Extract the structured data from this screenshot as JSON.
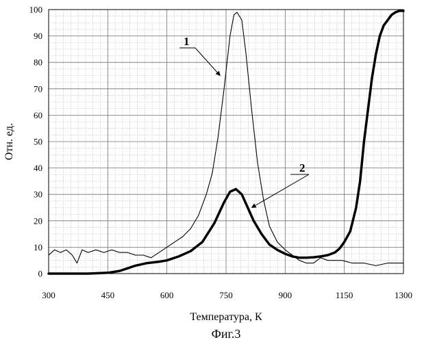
{
  "chart_data": {
    "type": "line",
    "title": "",
    "caption": "Фиг.3",
    "xlabel": "Температура, К",
    "ylabel": "Отн. ед.",
    "x_ticks": [
      "300",
      "450",
      "600",
      "750",
      "900",
      "1150",
      "1300"
    ],
    "y_ticks": [
      "0",
      "10",
      "20",
      "30",
      "40",
      "50",
      "60",
      "70",
      "80",
      "90",
      "100"
    ],
    "ylim": [
      0,
      100
    ],
    "grid": true,
    "legend": "none",
    "series": [
      {
        "name": "1",
        "style": "thin",
        "color": "#000000",
        "points": [
          [
            300,
            7
          ],
          [
            315,
            9
          ],
          [
            330,
            8
          ],
          [
            345,
            9
          ],
          [
            360,
            7
          ],
          [
            372,
            4
          ],
          [
            385,
            9
          ],
          [
            400,
            8
          ],
          [
            420,
            9
          ],
          [
            440,
            8
          ],
          [
            460,
            9
          ],
          [
            480,
            8
          ],
          [
            500,
            8
          ],
          [
            520,
            7
          ],
          [
            540,
            7
          ],
          [
            560,
            6
          ],
          [
            580,
            8
          ],
          [
            600,
            10
          ],
          [
            620,
            12
          ],
          [
            640,
            14
          ],
          [
            660,
            17
          ],
          [
            680,
            22
          ],
          [
            700,
            30
          ],
          [
            715,
            38
          ],
          [
            730,
            52
          ],
          [
            745,
            70
          ],
          [
            760,
            90
          ],
          [
            770,
            98
          ],
          [
            778,
            99
          ],
          [
            790,
            96
          ],
          [
            800,
            84
          ],
          [
            815,
            62
          ],
          [
            830,
            42
          ],
          [
            845,
            28
          ],
          [
            860,
            18
          ],
          [
            880,
            12
          ],
          [
            900,
            9
          ],
          [
            930,
            7
          ],
          [
            960,
            5
          ],
          [
            990,
            4
          ],
          [
            1020,
            4
          ],
          [
            1050,
            6
          ],
          [
            1080,
            5
          ],
          [
            1110,
            5
          ],
          [
            1140,
            5
          ],
          [
            1170,
            4
          ],
          [
            1200,
            4
          ],
          [
            1230,
            3
          ],
          [
            1260,
            4
          ],
          [
            1280,
            4
          ],
          [
            1300,
            4
          ]
        ]
      },
      {
        "name": "2",
        "style": "thick",
        "color": "#000000",
        "points": [
          [
            300,
            0
          ],
          [
            400,
            0
          ],
          [
            450,
            0.3
          ],
          [
            480,
            1
          ],
          [
            500,
            2
          ],
          [
            520,
            3
          ],
          [
            550,
            4
          ],
          [
            580,
            4.5
          ],
          [
            600,
            5
          ],
          [
            630,
            6.5
          ],
          [
            660,
            8.5
          ],
          [
            690,
            12
          ],
          [
            720,
            19
          ],
          [
            745,
            27
          ],
          [
            760,
            31
          ],
          [
            775,
            32
          ],
          [
            790,
            30
          ],
          [
            805,
            25
          ],
          [
            820,
            20
          ],
          [
            840,
            15
          ],
          [
            860,
            11
          ],
          [
            880,
            9
          ],
          [
            900,
            7.5
          ],
          [
            930,
            6.5
          ],
          [
            960,
            6
          ],
          [
            990,
            6
          ],
          [
            1020,
            6.2
          ],
          [
            1050,
            6.5
          ],
          [
            1080,
            7
          ],
          [
            1110,
            8
          ],
          [
            1130,
            9.5
          ],
          [
            1150,
            12
          ],
          [
            1165,
            16
          ],
          [
            1180,
            25
          ],
          [
            1190,
            35
          ],
          [
            1200,
            50
          ],
          [
            1210,
            62
          ],
          [
            1220,
            74
          ],
          [
            1230,
            83
          ],
          [
            1240,
            90
          ],
          [
            1250,
            94
          ],
          [
            1260,
            96
          ],
          [
            1270,
            98
          ],
          [
            1280,
            99
          ],
          [
            1290,
            99.5
          ],
          [
            1300,
            99.5
          ]
        ]
      }
    ],
    "annotations": [
      {
        "text": "1",
        "target_series": "1"
      },
      {
        "text": "2",
        "target_series": "2"
      }
    ]
  }
}
